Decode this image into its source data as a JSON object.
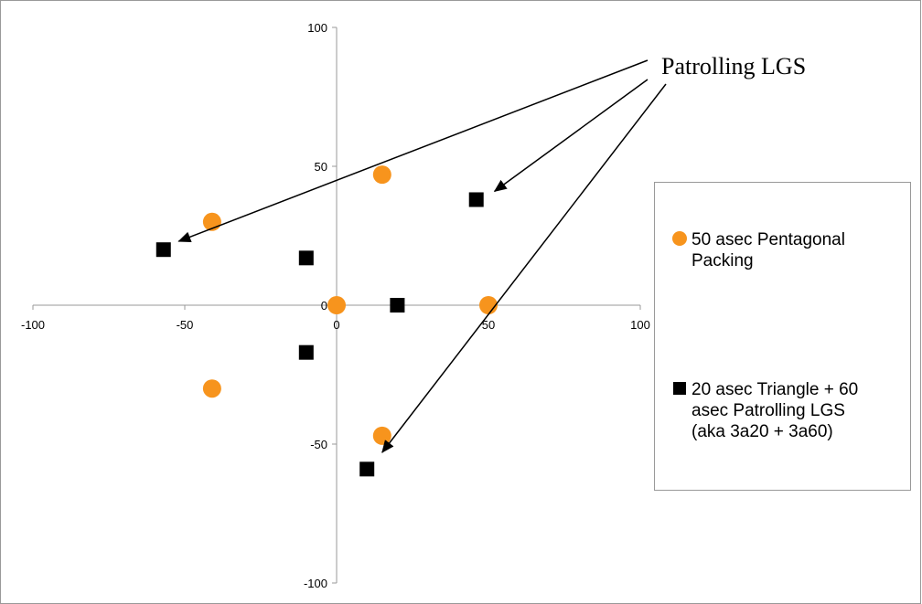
{
  "chart_data": {
    "type": "scatter",
    "title": "",
    "xlabel": "",
    "ylabel": "",
    "xlim": [
      -100,
      100
    ],
    "ylim": [
      -100,
      100
    ],
    "x_ticks": [
      -100,
      -50,
      0,
      50,
      100
    ],
    "y_ticks": [
      100,
      50,
      0,
      -50,
      -100
    ],
    "grid": false,
    "legend_position": "right",
    "series": [
      {
        "name": "50 asec Pentagonal Packing",
        "marker": "circle",
        "color": "#F7941D",
        "points": [
          {
            "x": -41,
            "y": 30
          },
          {
            "x": 15,
            "y": 47
          },
          {
            "x": 0,
            "y": 0
          },
          {
            "x": 50,
            "y": 0
          },
          {
            "x": -41,
            "y": -30
          },
          {
            "x": 15,
            "y": -47
          }
        ]
      },
      {
        "name": "20 asec Triangle + 60 asec Patrolling LGS (aka 3a20 + 3a60)",
        "legend_lines": [
          "20 asec Triangle + 60",
          "asec Patrolling LGS",
          "(aka 3a20 + 3a60)"
        ],
        "marker": "square",
        "color": "#000000",
        "points": [
          {
            "x": -57,
            "y": 20
          },
          {
            "x": -10,
            "y": 17
          },
          {
            "x": -10,
            "y": -17
          },
          {
            "x": 20,
            "y": 0
          },
          {
            "x": 46,
            "y": 38
          },
          {
            "x": 10,
            "y": -59
          }
        ]
      }
    ],
    "annotation": {
      "text": "Patrolling LGS",
      "arrow_targets": [
        {
          "x": -52,
          "y": 23
        },
        {
          "x": 52,
          "y": 41
        },
        {
          "x": 15,
          "y": -53
        }
      ]
    },
    "legend_labels": {
      "series_0_lines": [
        "50 asec Pentagonal",
        "Packing"
      ]
    }
  }
}
